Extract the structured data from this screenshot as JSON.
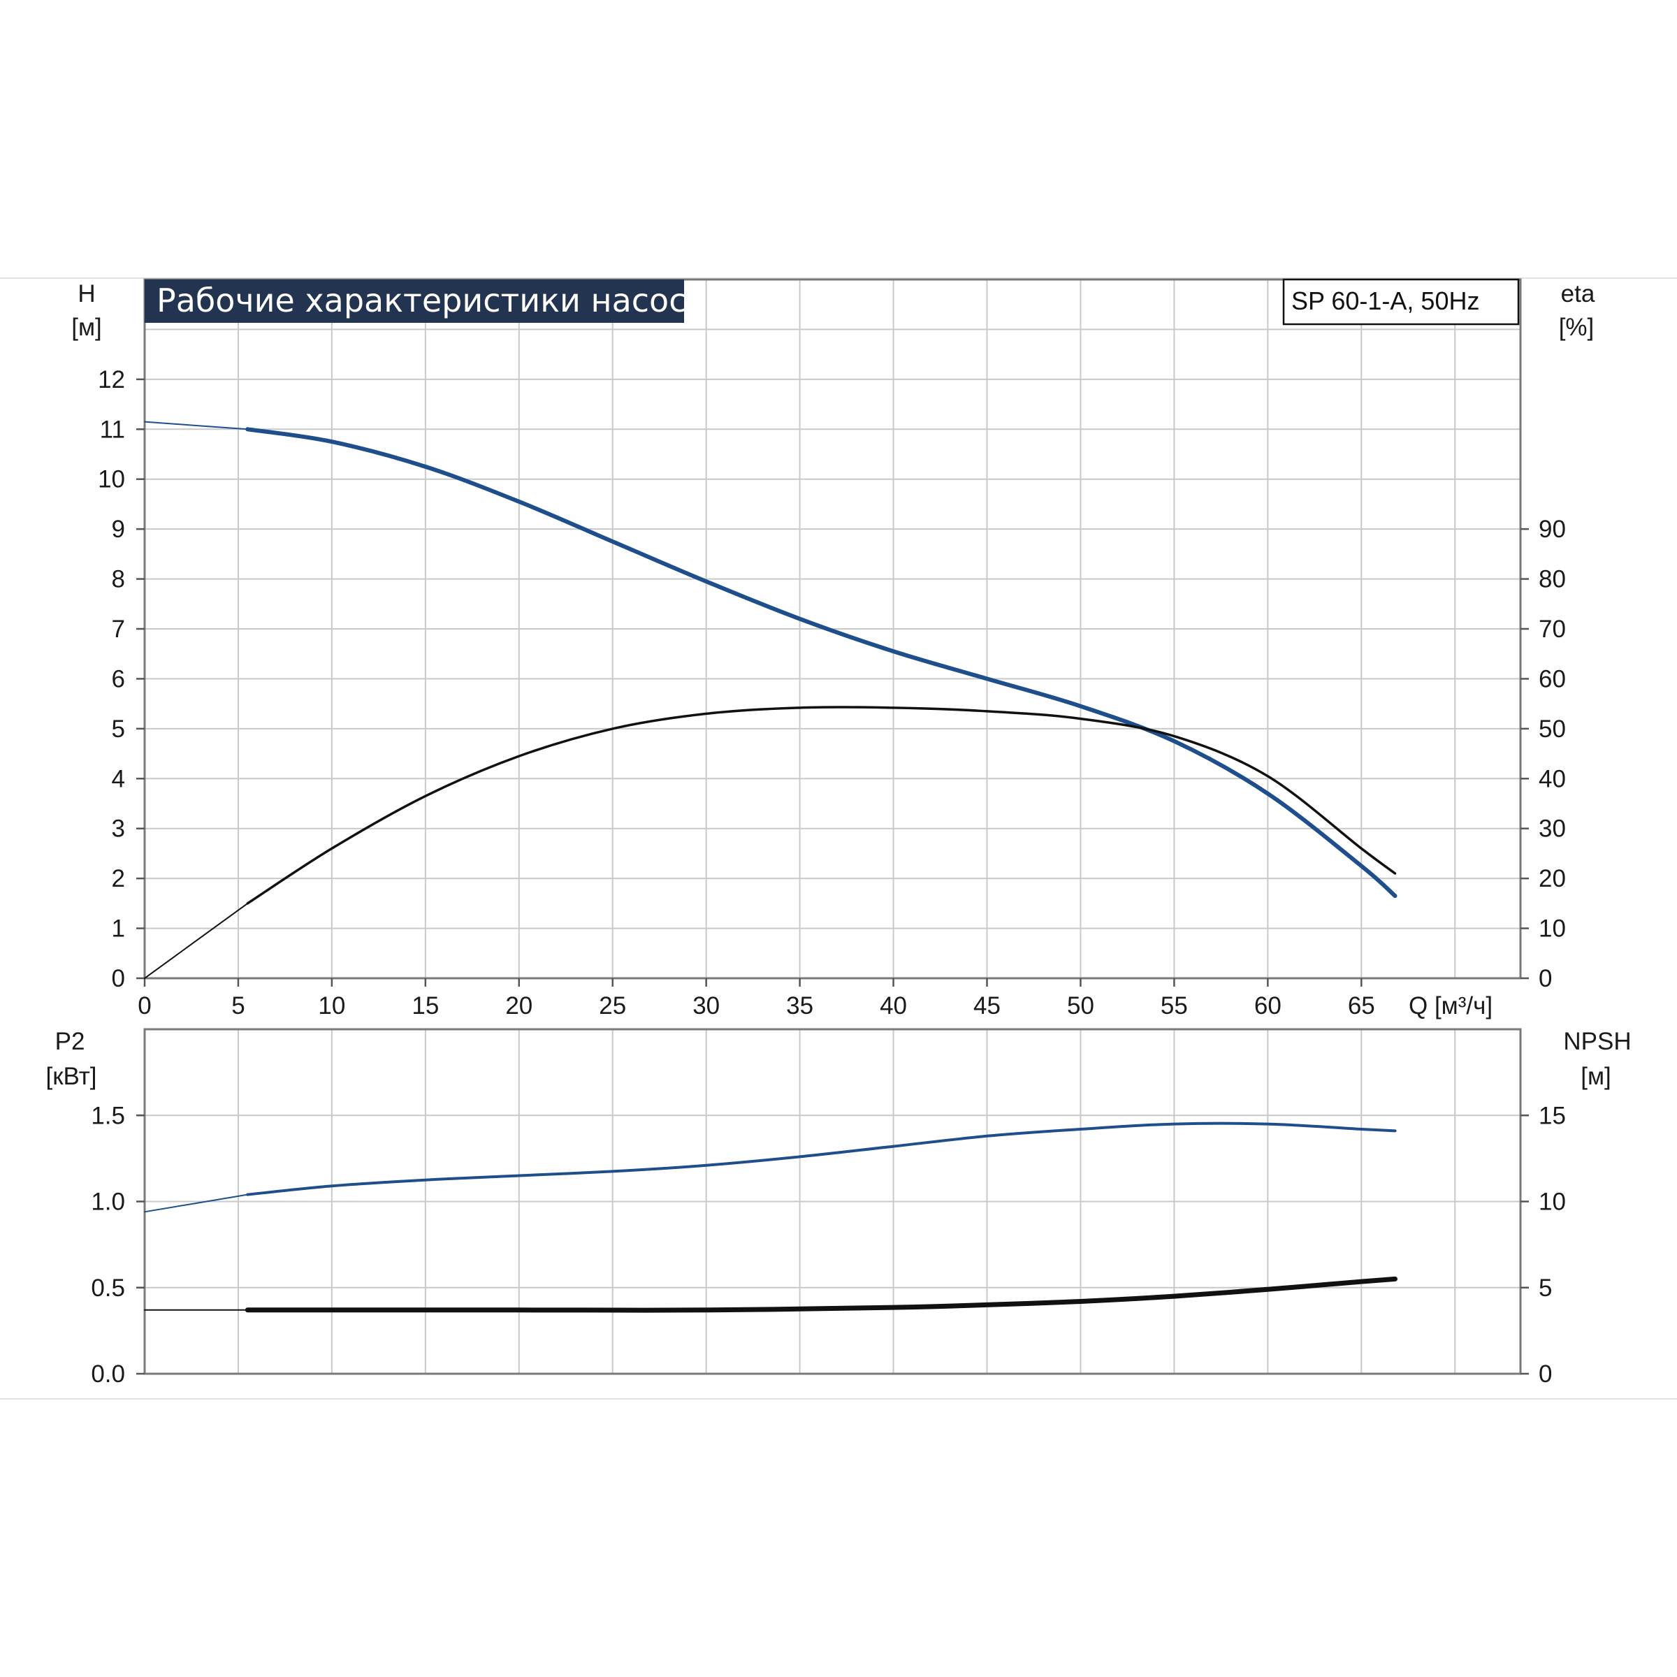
{
  "chart_data": {
    "type": "line",
    "title": "Рабочие характеристики насоса",
    "model": "SP 60-1-A, 50Hz",
    "colors": {
      "head": "#1f4e8c",
      "efficiency": "#111111",
      "power": "#1f4e8c",
      "npsh": "#111111",
      "grid": "#c9c9c9",
      "title_bg": "#22344f"
    },
    "x": {
      "label": "Q [м³/ч]",
      "range": [
        0,
        73.5
      ],
      "ticks": [
        "0",
        "5",
        "10",
        "15",
        "20",
        "25",
        "30",
        "35",
        "40",
        "45",
        "50",
        "55",
        "60",
        "65"
      ]
    },
    "upper": {
      "left_axis": {
        "label_line1": "H",
        "label_line2": "[м]",
        "range": [
          0,
          14
        ],
        "ticks": [
          "0",
          "1",
          "2",
          "3",
          "4",
          "5",
          "6",
          "7",
          "8",
          "9",
          "10",
          "11",
          "12"
        ]
      },
      "right_axis": {
        "label_line1": "eta",
        "label_line2": "[%]",
        "range": [
          0,
          140
        ],
        "ticks": [
          "0",
          "10",
          "20",
          "30",
          "40",
          "50",
          "60",
          "70",
          "80",
          "90"
        ]
      },
      "series": [
        {
          "key": "head",
          "axis": "left",
          "x": [
            0,
            5.5,
            10,
            15,
            20,
            25,
            30,
            35,
            40,
            45,
            50,
            55,
            60,
            65,
            66.8
          ],
          "y": [
            11.15,
            11.0,
            10.75,
            10.25,
            9.55,
            8.75,
            7.95,
            7.2,
            6.55,
            6.0,
            5.45,
            4.75,
            3.7,
            2.25,
            1.65
          ]
        },
        {
          "key": "efficiency",
          "axis": "right",
          "x": [
            0,
            5.5,
            10,
            15,
            20,
            25,
            30,
            35,
            40,
            45,
            50,
            55,
            60,
            65,
            66.8
          ],
          "y": [
            0,
            15,
            26,
            36.5,
            44.5,
            50,
            53,
            54.2,
            54.2,
            53.5,
            52,
            48.5,
            40.5,
            26,
            21
          ]
        }
      ]
    },
    "lower": {
      "left_axis": {
        "label_line1": "P2",
        "label_line2": "[кВт]",
        "range": [
          0,
          2.0
        ],
        "ticks": [
          "0.0",
          "0.5",
          "1.0",
          "1.5"
        ]
      },
      "right_axis": {
        "label_line1": "NPSH",
        "label_line2": "[м]",
        "range": [
          0,
          20
        ],
        "ticks": [
          "0",
          "5",
          "10",
          "15"
        ]
      },
      "series": [
        {
          "key": "power",
          "axis": "left",
          "x": [
            0,
            5.5,
            10,
            15,
            20,
            25,
            30,
            35,
            40,
            45,
            50,
            55,
            60,
            65,
            66.8
          ],
          "y": [
            0.94,
            1.04,
            1.09,
            1.125,
            1.15,
            1.175,
            1.21,
            1.26,
            1.32,
            1.38,
            1.42,
            1.45,
            1.45,
            1.42,
            1.41
          ]
        },
        {
          "key": "npsh",
          "axis": "right",
          "x": [
            0,
            5.5,
            10,
            20,
            30,
            40,
            45,
            50,
            55,
            60,
            65,
            66.8
          ],
          "y": [
            3.7,
            3.7,
            3.7,
            3.7,
            3.7,
            3.85,
            4.0,
            4.2,
            4.5,
            4.9,
            5.35,
            5.5
          ]
        }
      ]
    }
  }
}
